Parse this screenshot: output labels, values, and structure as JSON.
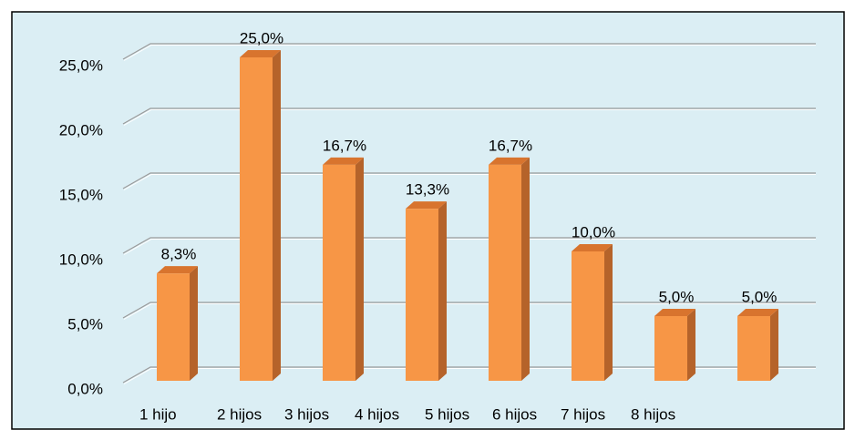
{
  "chart_data": {
    "type": "bar3d",
    "categories": [
      "1 hijo",
      "2 hijos",
      "3 hijos",
      "4 hijos",
      "5 hijos",
      "6 hijos",
      "7 hijos",
      "8 hijos"
    ],
    "values": [
      8.3,
      25.0,
      16.7,
      13.3,
      16.7,
      10.0,
      5.0,
      5.0
    ],
    "value_labels": [
      "8,3%",
      "25,0%",
      "16,7%",
      "13,3%",
      "16,7%",
      "10,0%",
      "5,0%",
      "5,0%"
    ],
    "color": "#f79646",
    "ylim": [
      0,
      25
    ],
    "yticks": [
      {
        "value": 0,
        "label": "0,0%"
      },
      {
        "value": 5,
        "label": "5,0%"
      },
      {
        "value": 10,
        "label": "10,0%"
      },
      {
        "value": 15,
        "label": "15,0%"
      },
      {
        "value": 20,
        "label": "20,0%"
      },
      {
        "value": 25,
        "label": "25,0%"
      }
    ],
    "grid": true
  }
}
